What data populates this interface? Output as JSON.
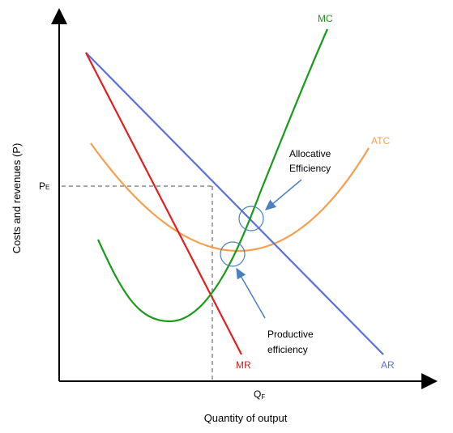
{
  "axes": {
    "y_title": "Costs and revenues (P)",
    "x_title": "Quantity of output"
  },
  "ticks": {
    "pe": "P",
    "pe_sub": "E",
    "qf": "Q",
    "qf_sub": "F"
  },
  "curves": {
    "mc": {
      "label": "MC",
      "color": "#1a9a1a"
    },
    "atc": {
      "label": "ATC",
      "color": "#f5a050"
    },
    "ar": {
      "label": "AR",
      "color": "#5870e0"
    },
    "mr": {
      "label": "MR",
      "color": "#e02020"
    }
  },
  "annotations": {
    "allocative_line1": "Allocative",
    "allocative_line2": "Efficiency",
    "productive_line1": "Productive",
    "productive_line2": "efficiency"
  },
  "colors": {
    "axis": "#000000",
    "guide": "#888888",
    "marker": "#4a7fc0"
  }
}
